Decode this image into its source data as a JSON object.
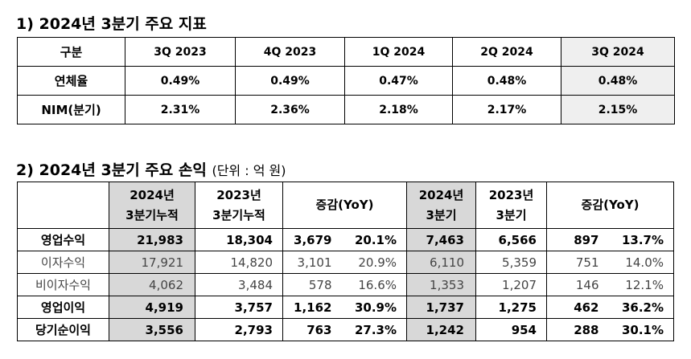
{
  "section1": {
    "title": "1) 2024년 3분기 주요 지표",
    "header": [
      "구분",
      "3Q 2023",
      "4Q 2023",
      "1Q 2024",
      "2Q 2024",
      "3Q 2024"
    ],
    "rows": [
      {
        "label": "연체율",
        "values": [
          "0.49%",
          "0.49%",
          "0.47%",
          "0.48%",
          "0.48%"
        ]
      },
      {
        "label": "NIM(분기)",
        "values": [
          "2.31%",
          "2.36%",
          "2.18%",
          "2.17%",
          "2.15%"
        ]
      }
    ]
  },
  "section2": {
    "title": "2) 2024년 3분기 주요 손익",
    "unit": "(단위 : 억 원)",
    "header": {
      "cum2024": [
        "2024년",
        "3분기누적"
      ],
      "cum2023": [
        "2023년",
        "3분기누적"
      ],
      "yoy1": "증감(YoY)",
      "q2024": [
        "2024년",
        "3분기"
      ],
      "q2023": [
        "2023년",
        "3분기"
      ],
      "yoy2": "증감(YoY)"
    },
    "rows": [
      {
        "label": "영업수익",
        "values": [
          "21,983",
          "18,304",
          "3,679",
          "20.1%",
          "7,463",
          "6,566",
          "897",
          "13.7%"
        ]
      },
      {
        "label": "이자수익",
        "values": [
          "17,921",
          "14,820",
          "3,101",
          "20.9%",
          "6,110",
          "5,359",
          "751",
          "14.0%"
        ]
      },
      {
        "label": "비이자수익",
        "values": [
          "4,062",
          "3,484",
          "578",
          "16.6%",
          "1,353",
          "1,207",
          "146",
          "12.1%"
        ]
      },
      {
        "label": "영업이익",
        "values": [
          "4,919",
          "3,757",
          "1,162",
          "30.9%",
          "1,737",
          "1,275",
          "462",
          "36.2%"
        ]
      },
      {
        "label": "당기순이익",
        "values": [
          "3,556",
          "2,793",
          "763",
          "27.3%",
          "1,242",
          "954",
          "288",
          "30.1%"
        ]
      }
    ]
  }
}
